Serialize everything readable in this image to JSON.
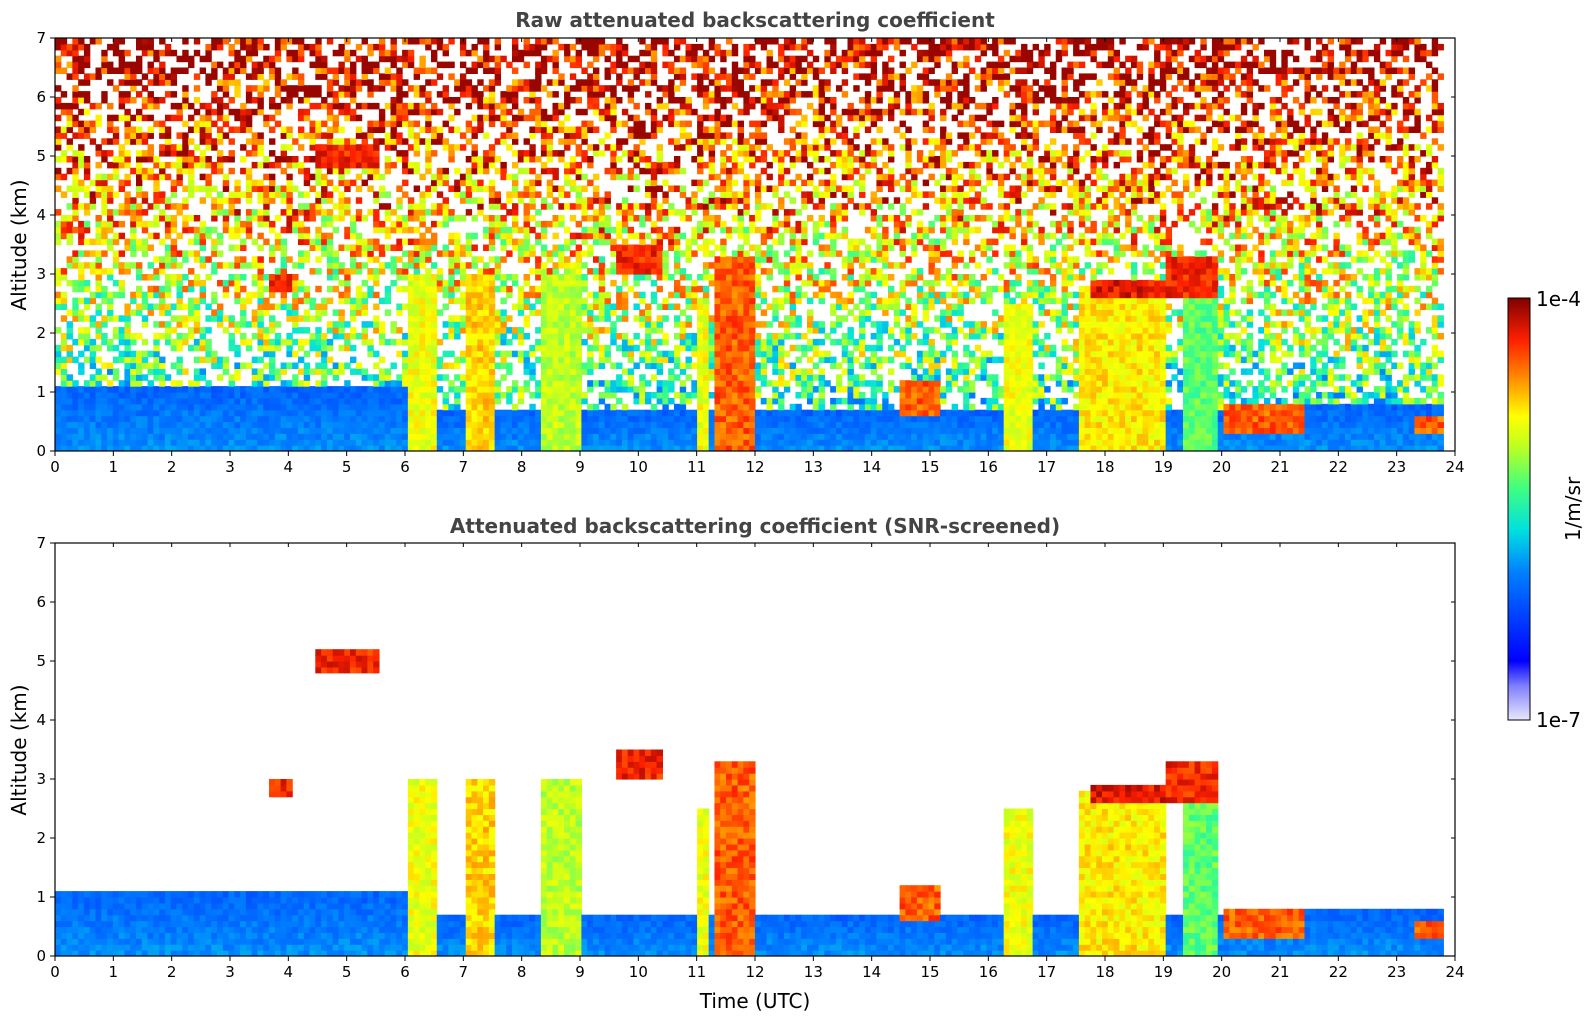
{
  "chart_data": [
    {
      "type": "heatmap",
      "title": "Raw attenuated backscattering coefficient",
      "xlabel": "",
      "ylabel": "Altitude (km)",
      "xlim": [
        0,
        24
      ],
      "ylim": [
        0,
        7
      ],
      "x_ticks": [
        "0",
        "1",
        "2",
        "3",
        "4",
        "5",
        "6",
        "7",
        "8",
        "9",
        "10",
        "11",
        "12",
        "13",
        "14",
        "15",
        "16",
        "17",
        "18",
        "19",
        "20",
        "21",
        "22",
        "23",
        "24"
      ],
      "y_ticks": [
        "0",
        "1",
        "2",
        "3",
        "4",
        "5",
        "6",
        "7"
      ],
      "data_end_time": 23.8,
      "features": [
        {
          "t0": 4.5,
          "t1": 5.6,
          "z0": 4.8,
          "z1": 5.2,
          "level": 0.95
        },
        {
          "t0": 3.7,
          "t1": 4.1,
          "z0": 2.7,
          "z1": 3.0,
          "level": 0.95
        },
        {
          "t0": 6.0,
          "t1": 6.5,
          "z0": 0.0,
          "z1": 3.0,
          "level": 0.75
        },
        {
          "t0": 7.0,
          "t1": 7.5,
          "z0": 0.0,
          "z1": 3.0,
          "level": 0.8
        },
        {
          "t0": 8.3,
          "t1": 9.0,
          "z0": 0.0,
          "z1": 3.0,
          "level": 0.7
        },
        {
          "t0": 9.6,
          "t1": 10.4,
          "z0": 3.0,
          "z1": 3.5,
          "level": 0.95
        },
        {
          "t0": 11.0,
          "t1": 11.2,
          "z0": 0.0,
          "z1": 2.5,
          "level": 0.75
        },
        {
          "t0": 11.3,
          "t1": 12.0,
          "z0": 0.0,
          "z1": 3.3,
          "level": 0.9
        },
        {
          "t0": 14.5,
          "t1": 15.2,
          "z0": 0.6,
          "z1": 1.2,
          "level": 0.9
        },
        {
          "t0": 16.3,
          "t1": 16.8,
          "z0": 0.0,
          "z1": 2.5,
          "level": 0.75
        },
        {
          "t0": 17.6,
          "t1": 19.0,
          "z0": 0.0,
          "z1": 2.8,
          "level": 0.78
        },
        {
          "t0": 17.8,
          "t1": 19.0,
          "z0": 2.6,
          "z1": 2.9,
          "level": 0.97
        },
        {
          "t0": 19.0,
          "t1": 19.9,
          "z0": 2.6,
          "z1": 3.3,
          "level": 0.95
        },
        {
          "t0": 19.3,
          "t1": 19.9,
          "z0": 0.0,
          "z1": 2.6,
          "level": 0.62
        },
        {
          "t0": 20.0,
          "t1": 21.4,
          "z0": 0.3,
          "z1": 0.85,
          "level": 0.9
        },
        {
          "t0": 23.3,
          "t1": 23.8,
          "z0": 0.3,
          "z1": 0.6,
          "level": 0.9
        }
      ]
    },
    {
      "type": "heatmap",
      "title": "Attenuated backscattering coefficient (SNR-screened)",
      "xlabel": "Time (UTC)",
      "ylabel": "Altitude (km)",
      "xlim": [
        0,
        24
      ],
      "ylim": [
        0,
        7
      ],
      "x_ticks": [
        "0",
        "1",
        "2",
        "3",
        "4",
        "5",
        "6",
        "7",
        "8",
        "9",
        "10",
        "11",
        "12",
        "13",
        "14",
        "15",
        "16",
        "17",
        "18",
        "19",
        "20",
        "21",
        "22",
        "23",
        "24"
      ],
      "y_ticks": [
        "0",
        "1",
        "2",
        "3",
        "4",
        "5",
        "6",
        "7"
      ],
      "data_end_time": 23.8,
      "features": [
        {
          "t0": 4.5,
          "t1": 5.6,
          "z0": 4.8,
          "z1": 5.2,
          "level": 0.95
        },
        {
          "t0": 3.7,
          "t1": 4.1,
          "z0": 2.7,
          "z1": 3.0,
          "level": 0.95
        },
        {
          "t0": 6.0,
          "t1": 6.5,
          "z0": 0.0,
          "z1": 3.0,
          "level": 0.75
        },
        {
          "t0": 7.0,
          "t1": 7.5,
          "z0": 0.0,
          "z1": 3.0,
          "level": 0.8
        },
        {
          "t0": 8.3,
          "t1": 9.0,
          "z0": 0.0,
          "z1": 3.0,
          "level": 0.7
        },
        {
          "t0": 9.6,
          "t1": 10.4,
          "z0": 3.0,
          "z1": 3.5,
          "level": 0.95
        },
        {
          "t0": 11.0,
          "t1": 11.2,
          "z0": 0.0,
          "z1": 2.5,
          "level": 0.75
        },
        {
          "t0": 11.3,
          "t1": 12.0,
          "z0": 0.0,
          "z1": 3.3,
          "level": 0.9
        },
        {
          "t0": 14.5,
          "t1": 15.2,
          "z0": 0.6,
          "z1": 1.2,
          "level": 0.9
        },
        {
          "t0": 16.3,
          "t1": 16.8,
          "z0": 0.0,
          "z1": 2.5,
          "level": 0.75
        },
        {
          "t0": 17.6,
          "t1": 19.0,
          "z0": 0.0,
          "z1": 2.8,
          "level": 0.78
        },
        {
          "t0": 17.8,
          "t1": 19.0,
          "z0": 2.6,
          "z1": 2.9,
          "level": 0.97
        },
        {
          "t0": 19.0,
          "t1": 19.9,
          "z0": 2.6,
          "z1": 3.3,
          "level": 0.95
        },
        {
          "t0": 19.3,
          "t1": 19.9,
          "z0": 0.0,
          "z1": 2.6,
          "level": 0.62
        },
        {
          "t0": 20.0,
          "t1": 21.4,
          "z0": 0.3,
          "z1": 0.85,
          "level": 0.9
        },
        {
          "t0": 23.3,
          "t1": 23.8,
          "z0": 0.3,
          "z1": 0.6,
          "level": 0.9
        }
      ]
    }
  ],
  "colorbar": {
    "label": "1/m/sr",
    "max_label": "1e-4",
    "min_label": "1e-7",
    "colormap": "jet",
    "scale": "log"
  }
}
